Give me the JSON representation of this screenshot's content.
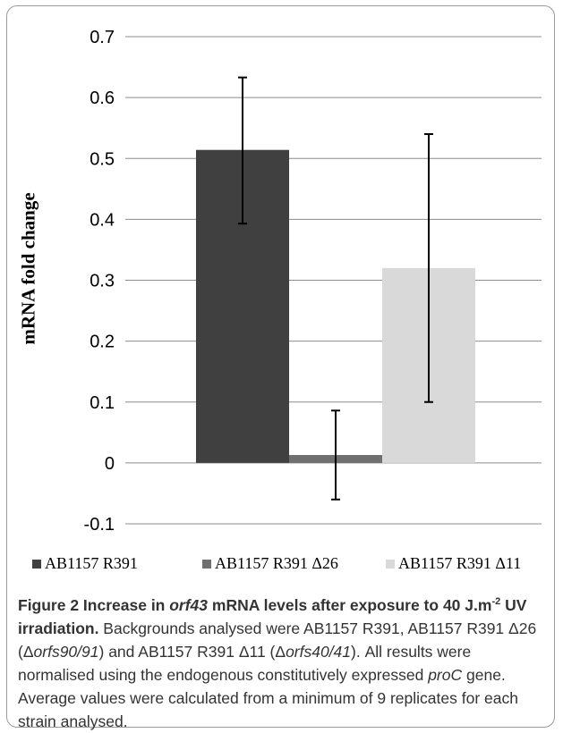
{
  "chart_data": {
    "type": "bar",
    "categories": [
      "AB1157 R391",
      "AB1157 R391 Δ26",
      "AB1157 R391 Δ11"
    ],
    "values": [
      0.514,
      0.013,
      0.32
    ],
    "error_low": [
      0.393,
      -0.06,
      0.1
    ],
    "error_high": [
      0.633,
      0.086,
      0.54
    ],
    "colors": [
      "#404040",
      "#6f6f6f",
      "#d9d9d9"
    ],
    "ylabel": "mRNA fold change",
    "xlabel": "",
    "ylim": [
      -0.1,
      0.7
    ],
    "yticks": [
      "-0.1",
      "0",
      "0.1",
      "0.2",
      "0.3",
      "0.4",
      "0.5",
      "0.6",
      "0.7"
    ],
    "grid": true,
    "legend_position": "bottom"
  },
  "legend": [
    {
      "label": "AB1157 R391",
      "color": "#404040"
    },
    {
      "label": "AB1157 R391 Δ26",
      "color": "#6f6f6f"
    },
    {
      "label": "AB1157 R391 Δ11",
      "color": "#d9d9d9"
    }
  ],
  "caption": {
    "title_part1": "Figure 2 Increase in ",
    "title_gene": "orf43",
    "title_part2": " mRNA levels after exposure to 40 J.m",
    "title_sup": "-2",
    "title_part3": " UV irradiation.",
    "b1": " Backgrounds analysed were AB1157 R391, AB1157 R391 Δ26 (Δ",
    "b1_gene": "orfs90/91",
    "b2": ") and AB1157 R391 Δ11 (Δ",
    "b2_gene": "orfs40/41",
    "b3": "). All results were normalised using the endogenous constitutively expressed ",
    "b3_gene": "proC",
    "b4": " gene. Average values were calculated from a minimum of 9 replicates for each strain analysed."
  }
}
